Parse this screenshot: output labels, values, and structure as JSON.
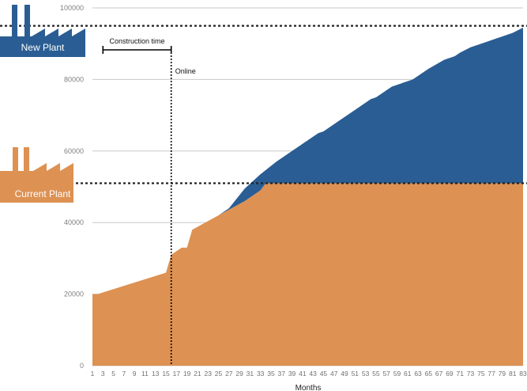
{
  "chart_data": {
    "type": "area",
    "xlabel": "Months",
    "ylabel": "",
    "xlim": [
      1,
      83
    ],
    "ylim": [
      0,
      100000
    ],
    "yticks": [
      0,
      20000,
      40000,
      60000,
      80000,
      100000
    ],
    "xticks": [
      1,
      3,
      5,
      7,
      9,
      11,
      13,
      15,
      17,
      19,
      21,
      23,
      25,
      27,
      29,
      31,
      33,
      35,
      37,
      39,
      41,
      43,
      45,
      47,
      49,
      51,
      53,
      55,
      57,
      59,
      61,
      63,
      65,
      67,
      69,
      71,
      73,
      75,
      77,
      79,
      81,
      83
    ],
    "grid": true,
    "series": [
      {
        "name": "Current Plant",
        "color": "#dd9152",
        "x": [
          1,
          2,
          15,
          16,
          18,
          19,
          20,
          25,
          30,
          33,
          34,
          83
        ],
        "values": [
          20000,
          20000,
          26000,
          31000,
          33000,
          33000,
          38000,
          42000,
          46000,
          49000,
          51000,
          51000
        ]
      },
      {
        "name": "New Plant",
        "color": "#2a5d93",
        "x": [
          25,
          27,
          30,
          33,
          36,
          39,
          42,
          44,
          45,
          48,
          51,
          54,
          55,
          58,
          62,
          65,
          68,
          70,
          71,
          73,
          76,
          78,
          80,
          81,
          83
        ],
        "values": [
          42000,
          44000,
          49500,
          53500,
          57000,
          60000,
          63000,
          65000,
          65500,
          68500,
          71500,
          74500,
          75000,
          78000,
          80000,
          83000,
          85500,
          86500,
          87500,
          89000,
          90500,
          91500,
          92500,
          93000,
          94500
        ]
      }
    ],
    "reference_lines": {
      "current_capacity": 51000,
      "new_capacity": 95000
    },
    "annotations": {
      "construction_time": {
        "label": "Construction time",
        "x_start": 3,
        "x_end": 16
      },
      "online": {
        "label": "Online",
        "x": 16
      }
    },
    "legend": [
      {
        "label": "New Plant",
        "color": "#2a5d93",
        "icon": "factory-icon"
      },
      {
        "label": "Current Plant",
        "color": "#dd9152",
        "icon": "factory-icon"
      }
    ]
  }
}
